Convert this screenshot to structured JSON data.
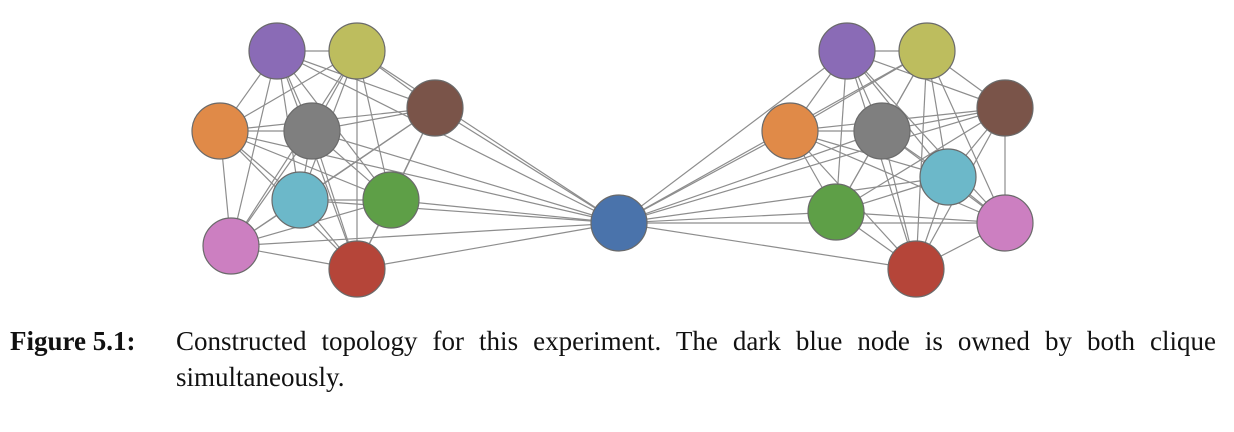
{
  "figure": {
    "caption_label": "Figure 5.1:",
    "caption_text": "Constructed topology for this experiment. The dark blue node is owned by both clique simultaneously."
  },
  "graph": {
    "nodes": [
      {
        "id": "L-purple",
        "color": "#8a6bb6"
      },
      {
        "id": "L-olive",
        "color": "#bdbd5e"
      },
      {
        "id": "L-orange",
        "color": "#e08a48"
      },
      {
        "id": "L-gray",
        "color": "#7f7f7f"
      },
      {
        "id": "L-brown",
        "color": "#7a5449"
      },
      {
        "id": "L-cyan",
        "color": "#6cb8c9"
      },
      {
        "id": "L-green",
        "color": "#5e9f47"
      },
      {
        "id": "L-pink",
        "color": "#cc7fc1"
      },
      {
        "id": "L-red",
        "color": "#b54539"
      },
      {
        "id": "center-blue",
        "color": "#4a73ab"
      },
      {
        "id": "R-purple",
        "color": "#8a6bb6"
      },
      {
        "id": "R-olive",
        "color": "#bdbd5e"
      },
      {
        "id": "R-orange",
        "color": "#e08a48"
      },
      {
        "id": "R-gray",
        "color": "#7f7f7f"
      },
      {
        "id": "R-brown",
        "color": "#7a5449"
      },
      {
        "id": "R-cyan",
        "color": "#6cb8c9"
      },
      {
        "id": "R-green",
        "color": "#5e9f47"
      },
      {
        "id": "R-pink",
        "color": "#cc7fc1"
      },
      {
        "id": "R-red",
        "color": "#b54539"
      }
    ],
    "edge_color": "#8d8d8d"
  }
}
